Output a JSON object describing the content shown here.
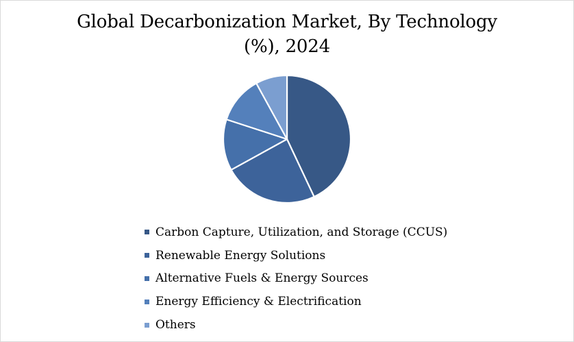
{
  "chart_data": {
    "type": "pie",
    "title_lines": [
      "Global Decarbonization Market, By Technology",
      "(%), 2024"
    ],
    "categories": [
      "Carbon Capture, Utilization, and Storage (CCUS)",
      "Renewable Energy Solutions",
      "Alternative Fuels & Energy Sources",
      "Energy Efficiency & Electrification",
      "Others"
    ],
    "values": [
      43,
      24,
      13,
      12,
      8
    ],
    "colors": [
      "#375886",
      "#3d639a",
      "#4570aa",
      "#5480bb",
      "#7b9ed0"
    ],
    "legend_position": "bottom"
  }
}
